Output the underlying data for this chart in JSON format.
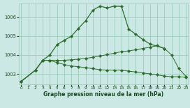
{
  "background_color": "#cce8e4",
  "grid_color": "#99ccbb",
  "line_color": "#2d6b2d",
  "marker_color": "#2d6b2d",
  "xlabel": "Graphe pression niveau de la mer (hPa)",
  "xlabel_color": "#1a4a1a",
  "ylim": [
    1002.45,
    1006.75
  ],
  "xlim": [
    -0.3,
    23.3
  ],
  "yticks": [
    1003,
    1004,
    1005,
    1006
  ],
  "xticks": [
    0,
    1,
    2,
    3,
    4,
    5,
    6,
    7,
    8,
    9,
    10,
    11,
    12,
    13,
    14,
    15,
    16,
    17,
    18,
    19,
    20,
    21,
    22,
    23
  ],
  "line1_x": [
    0,
    2,
    3,
    4,
    5,
    6,
    7,
    8,
    9,
    10,
    11,
    12,
    13,
    14,
    15,
    16,
    17,
    18,
    20
  ],
  "line1_y": [
    1002.6,
    1003.2,
    1003.72,
    1004.0,
    1004.55,
    1004.78,
    1005.0,
    1005.42,
    1005.82,
    1006.38,
    1006.6,
    1006.5,
    1006.6,
    1006.58,
    1005.38,
    1005.1,
    1004.82,
    1004.58,
    1004.35
  ],
  "line2_x": [
    0,
    2,
    3,
    4,
    5,
    6,
    7,
    8,
    9,
    10,
    11,
    12,
    13,
    14,
    15,
    16,
    17,
    18,
    19,
    20,
    21,
    22,
    23
  ],
  "line2_y": [
    1002.6,
    1003.2,
    1003.72,
    1003.72,
    1003.72,
    1003.72,
    1003.75,
    1003.78,
    1003.82,
    1003.88,
    1003.95,
    1004.02,
    1004.1,
    1004.18,
    1004.22,
    1004.28,
    1004.35,
    1004.42,
    1004.5,
    1004.35,
    1004.0,
    1003.28,
    1002.87
  ],
  "line3_x": [
    0,
    2,
    3,
    4,
    5,
    6,
    7,
    8,
    9,
    10,
    11,
    12,
    13,
    14,
    15,
    16,
    17,
    18,
    19,
    20,
    21,
    22,
    23
  ],
  "line3_y": [
    1002.6,
    1003.2,
    1003.72,
    1003.72,
    1003.6,
    1003.5,
    1003.42,
    1003.38,
    1003.33,
    1003.28,
    1003.22,
    1003.2,
    1003.2,
    1003.2,
    1003.15,
    1003.1,
    1003.05,
    1003.0,
    1002.95,
    1002.88,
    1002.85,
    1002.85,
    1002.82
  ]
}
